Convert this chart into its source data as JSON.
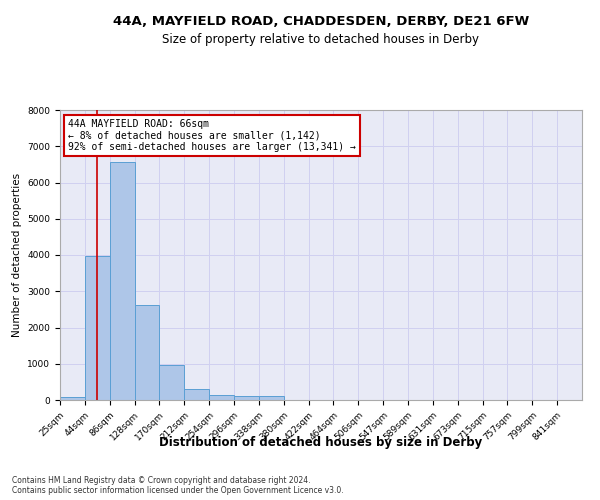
{
  "title1": "44A, MAYFIELD ROAD, CHADDESDEN, DERBY, DE21 6FW",
  "title2": "Size of property relative to detached houses in Derby",
  "xlabel": "Distribution of detached houses by size in Derby",
  "ylabel": "Number of detached properties",
  "bin_labels": [
    "25sqm",
    "44sqm",
    "86sqm",
    "128sqm",
    "170sqm",
    "212sqm",
    "254sqm",
    "296sqm",
    "338sqm",
    "380sqm",
    "422sqm",
    "464sqm",
    "506sqm",
    "547sqm",
    "589sqm",
    "631sqm",
    "673sqm",
    "715sqm",
    "757sqm",
    "799sqm",
    "841sqm"
  ],
  "bar_values": [
    75,
    3980,
    6560,
    2620,
    960,
    300,
    130,
    100,
    100,
    0,
    0,
    0,
    0,
    0,
    0,
    0,
    0,
    0,
    0,
    0,
    0
  ],
  "bar_color": "#aec6e8",
  "bar_edge_color": "#5a9fd4",
  "red_line_x": 66,
  "annotation_text_line1": "44A MAYFIELD ROAD: 66sqm",
  "annotation_text_line2": "← 8% of detached houses are smaller (1,142)",
  "annotation_text_line3": "92% of semi-detached houses are larger (13,341) →",
  "annotation_box_color": "#ffffff",
  "annotation_box_edge_color": "#cc0000",
  "red_line_color": "#cc0000",
  "grid_color": "#d0d0f0",
  "background_color": "#e8eaf6",
  "ylim": [
    0,
    8000
  ],
  "yticks": [
    0,
    1000,
    2000,
    3000,
    4000,
    5000,
    6000,
    7000,
    8000
  ],
  "title1_fontsize": 9.5,
  "title2_fontsize": 8.5,
  "xlabel_fontsize": 8.5,
  "ylabel_fontsize": 7.5,
  "tick_fontsize": 6.5,
  "ann_fontsize": 7.0,
  "footnote1": "Contains HM Land Registry data © Crown copyright and database right 2024.",
  "footnote2": "Contains public sector information licensed under the Open Government Licence v3.0.",
  "footnote_fontsize": 5.5
}
